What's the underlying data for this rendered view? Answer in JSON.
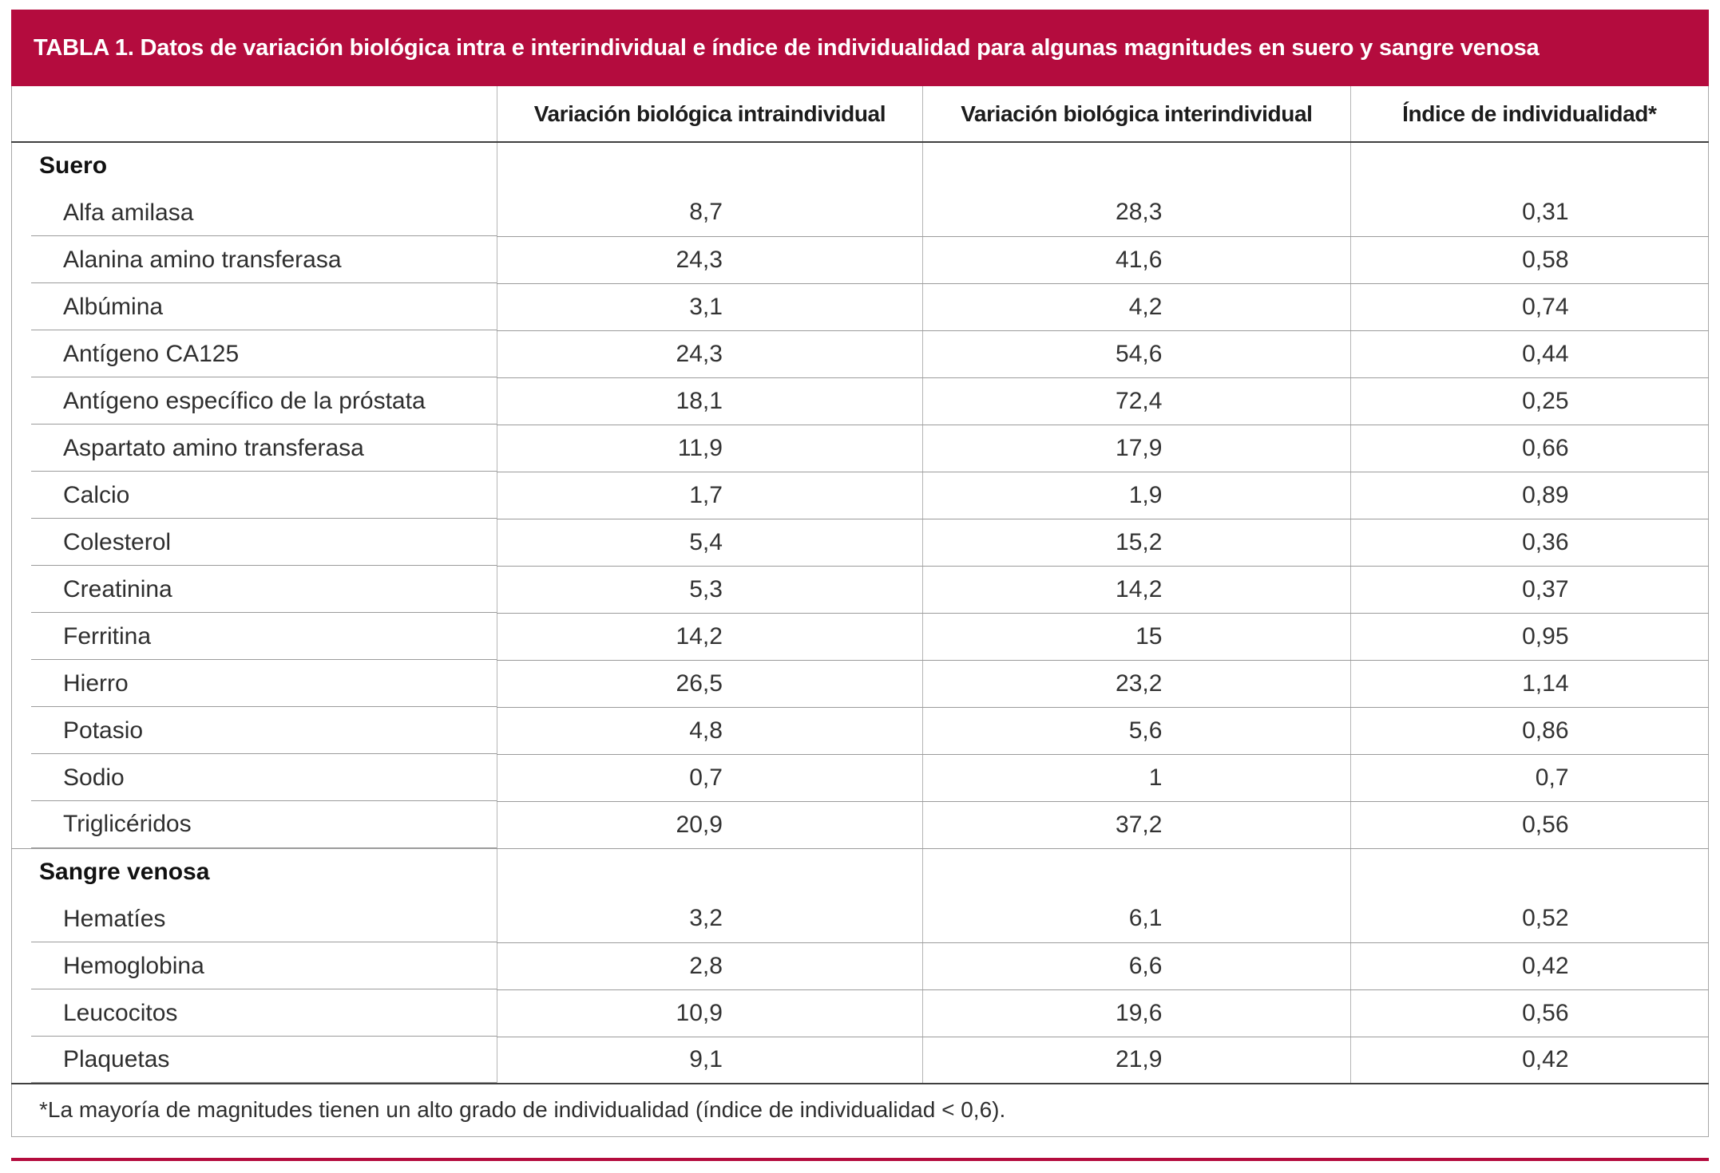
{
  "colors": {
    "accent": "#b40c3e"
  },
  "title": "TABLA 1. Datos de variación biológica intra e interindividual e índice de individualidad para algunas magnitudes en suero y sangre venosa",
  "table": {
    "columns": [
      "",
      "Variación biológica intraindividual",
      "Variación biológica interindividual",
      "Índice de individualidad*"
    ],
    "sections": [
      {
        "label": "Suero",
        "rows": [
          {
            "magnitud": "Alfa amilasa",
            "variacion_intraindividual": "8,7",
            "variacion_interindividual": "28,3",
            "indice_individualidad": "0,31"
          },
          {
            "magnitud": "Alanina amino transferasa",
            "variacion_intraindividual": "24,3",
            "variacion_interindividual": "41,6",
            "indice_individualidad": "0,58"
          },
          {
            "magnitud": "Albúmina",
            "variacion_intraindividual": "3,1",
            "variacion_interindividual": "4,2",
            "indice_individualidad": "0,74"
          },
          {
            "magnitud": "Antígeno CA125",
            "variacion_intraindividual": "24,3",
            "variacion_interindividual": "54,6",
            "indice_individualidad": "0,44"
          },
          {
            "magnitud": "Antígeno específico de la próstata",
            "variacion_intraindividual": "18,1",
            "variacion_interindividual": "72,4",
            "indice_individualidad": "0,25"
          },
          {
            "magnitud": "Aspartato amino transferasa",
            "variacion_intraindividual": "11,9",
            "variacion_interindividual": "17,9",
            "indice_individualidad": "0,66"
          },
          {
            "magnitud": "Calcio",
            "variacion_intraindividual": "1,7",
            "variacion_interindividual": "1,9",
            "indice_individualidad": "0,89"
          },
          {
            "magnitud": "Colesterol",
            "variacion_intraindividual": "5,4",
            "variacion_interindividual": "15,2",
            "indice_individualidad": "0,36"
          },
          {
            "magnitud": "Creatinina",
            "variacion_intraindividual": "5,3",
            "variacion_interindividual": "14,2",
            "indice_individualidad": "0,37"
          },
          {
            "magnitud": "Ferritina",
            "variacion_intraindividual": "14,2",
            "variacion_interindividual": "15",
            "indice_individualidad": "0,95"
          },
          {
            "magnitud": "Hierro",
            "variacion_intraindividual": "26,5",
            "variacion_interindividual": "23,2",
            "indice_individualidad": "1,14"
          },
          {
            "magnitud": "Potasio",
            "variacion_intraindividual": "4,8",
            "variacion_interindividual": "5,6",
            "indice_individualidad": "0,86"
          },
          {
            "magnitud": "Sodio",
            "variacion_intraindividual": "0,7",
            "variacion_interindividual": "1",
            "indice_individualidad": "0,7"
          },
          {
            "magnitud": "Triglicéridos",
            "variacion_intraindividual": "20,9",
            "variacion_interindividual": "37,2",
            "indice_individualidad": "0,56"
          }
        ]
      },
      {
        "label": "Sangre venosa",
        "rows": [
          {
            "magnitud": "Hematíes",
            "variacion_intraindividual": "3,2",
            "variacion_interindividual": "6,1",
            "indice_individualidad": "0,52"
          },
          {
            "magnitud": "Hemoglobina",
            "variacion_intraindividual": "2,8",
            "variacion_interindividual": "6,6",
            "indice_individualidad": "0,42"
          },
          {
            "magnitud": "Leucocitos",
            "variacion_intraindividual": "10,9",
            "variacion_interindividual": "19,6",
            "indice_individualidad": "0,56"
          },
          {
            "magnitud": "Plaquetas",
            "variacion_intraindividual": "9,1",
            "variacion_interindividual": "21,9",
            "indice_individualidad": "0,42"
          }
        ]
      }
    ],
    "footnote": "*La mayoría de magnitudes tienen un alto grado de individualidad (índice de individualidad < 0,6)."
  }
}
